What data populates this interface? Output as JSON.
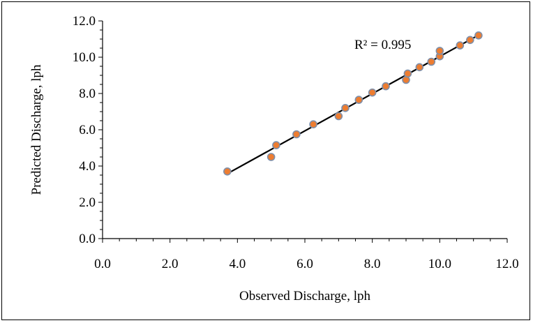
{
  "chart_data": {
    "type": "scatter",
    "xlabel": "Observed Discharge,  lph",
    "ylabel": "Predicted Discharge,  lph",
    "xlim": [
      0,
      12
    ],
    "ylim": [
      0,
      12
    ],
    "xticks": [
      "0.0",
      "2.0",
      "4.0",
      "6.0",
      "8.0",
      "10.0",
      "12.0"
    ],
    "yticks": [
      "0.0",
      "2.0",
      "4.0",
      "6.0",
      "8.0",
      "10.0",
      "12.0"
    ],
    "grid": false,
    "legend": "none",
    "annotation": "R² = 0.995",
    "marker_color": "#ED7D31",
    "marker_edge_color": "#7F8FA9",
    "trendline_color": "#000000",
    "points": [
      {
        "x": 3.7,
        "y": 3.7
      },
      {
        "x": 5.0,
        "y": 4.5
      },
      {
        "x": 5.15,
        "y": 5.15
      },
      {
        "x": 5.75,
        "y": 5.75
      },
      {
        "x": 6.25,
        "y": 6.3
      },
      {
        "x": 7.0,
        "y": 6.75
      },
      {
        "x": 7.2,
        "y": 7.2
      },
      {
        "x": 7.6,
        "y": 7.65
      },
      {
        "x": 8.0,
        "y": 8.05
      },
      {
        "x": 8.4,
        "y": 8.4
      },
      {
        "x": 9.0,
        "y": 8.75
      },
      {
        "x": 9.05,
        "y": 9.1
      },
      {
        "x": 9.4,
        "y": 9.45
      },
      {
        "x": 9.75,
        "y": 9.75
      },
      {
        "x": 10.0,
        "y": 10.05
      },
      {
        "x": 10.0,
        "y": 10.35
      },
      {
        "x": 10.6,
        "y": 10.65
      },
      {
        "x": 10.9,
        "y": 10.95
      },
      {
        "x": 11.15,
        "y": 11.2
      }
    ],
    "trendline": {
      "x_start": 3.7,
      "y_start": 3.58,
      "x_end": 11.15,
      "y_end": 11.22
    }
  }
}
